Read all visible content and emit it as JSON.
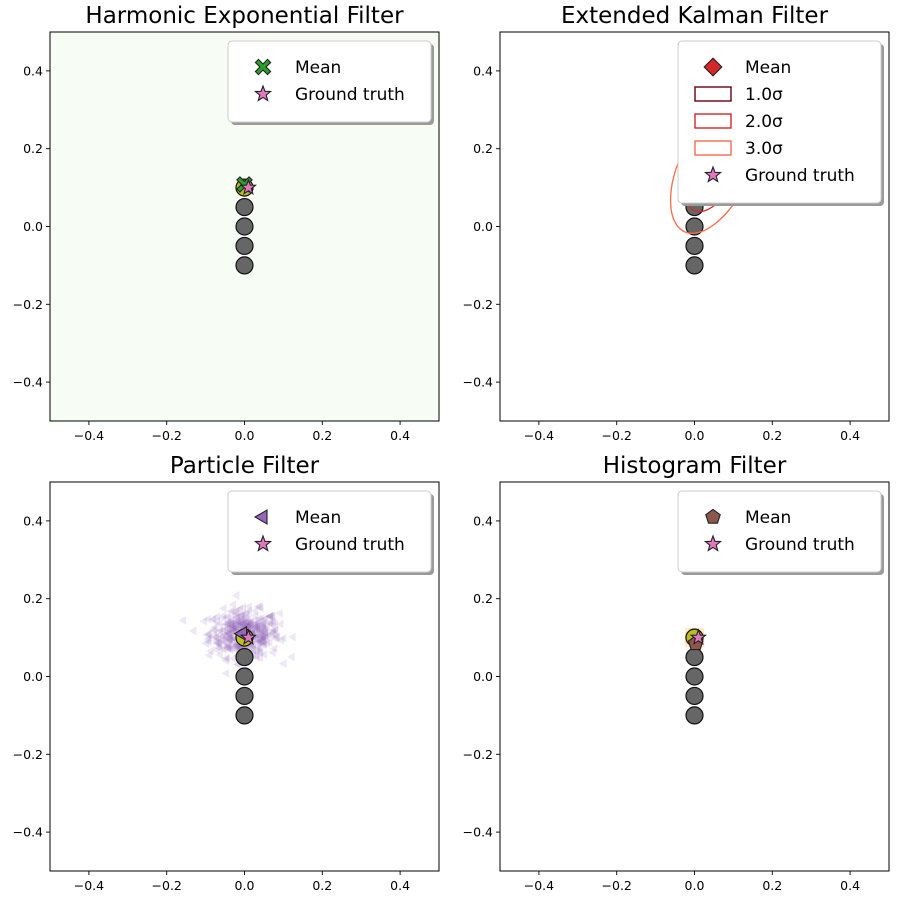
{
  "chart_data": [
    {
      "type": "scatter",
      "title": "Harmonic Exponential Filter",
      "xlim": [
        -0.5,
        0.5
      ],
      "ylim": [
        -0.5,
        0.5
      ],
      "xticks": [
        -0.4,
        -0.2,
        0.0,
        0.2,
        0.4
      ],
      "yticks": [
        -0.4,
        -0.2,
        0.0,
        0.2,
        0.4
      ],
      "tick_labels": [
        "−0.4",
        "−0.2",
        "0.0",
        "0.2",
        "0.4"
      ],
      "background": "#f7fcf5",
      "landmarks": {
        "x": [
          0.0,
          0.0,
          0.0,
          0.0,
          0.0
        ],
        "y": [
          0.1,
          0.05,
          0.0,
          -0.05,
          -0.1
        ],
        "colors": [
          "#bcbd22",
          "#666666",
          "#666666",
          "#666666",
          "#666666"
        ]
      },
      "mean": {
        "x": 0.0,
        "y": 0.108,
        "marker": "X",
        "color": "#2ca02c"
      },
      "ground_truth": {
        "x": 0.01,
        "y": 0.1,
        "marker": "star",
        "color": "#e377c2"
      },
      "legend_position": "top-right",
      "legend": [
        {
          "label": "Mean",
          "marker": "X",
          "color": "#2ca02c"
        },
        {
          "label": "Ground truth",
          "marker": "star",
          "color": "#e377c2"
        }
      ]
    },
    {
      "type": "scatter",
      "title": "Extended Kalman Filter",
      "xlim": [
        -0.5,
        0.5
      ],
      "ylim": [
        -0.5,
        0.5
      ],
      "xticks": [
        -0.4,
        -0.2,
        0.0,
        0.2,
        0.4
      ],
      "yticks": [
        -0.4,
        -0.2,
        0.0,
        0.2,
        0.4
      ],
      "tick_labels": [
        "−0.4",
        "−0.2",
        "0.0",
        "0.2",
        "0.4"
      ],
      "landmarks": {
        "x": [
          0.0,
          0.0,
          0.0,
          0.0,
          0.0
        ],
        "y": [
          0.1,
          0.05,
          0.0,
          -0.05,
          -0.1
        ],
        "colors": [
          "#bcbd22",
          "#666666",
          "#666666",
          "#666666",
          "#666666"
        ]
      },
      "mean": {
        "x": 0.05,
        "y": 0.15,
        "marker": "diamond",
        "color": "#d62728"
      },
      "ground_truth": {
        "x": 0.05,
        "y": 0.13,
        "marker": "star",
        "color": "#e377c2"
      },
      "covariance_ellipses": [
        {
          "sigma": 1.0,
          "rx": 0.03,
          "ry": 0.06,
          "color": "#67000d"
        },
        {
          "sigma": 2.0,
          "rx": 0.06,
          "ry": 0.12,
          "color": "#d62728"
        },
        {
          "sigma": 3.0,
          "rx": 0.09,
          "ry": 0.18,
          "color": "#fb6a4a"
        }
      ],
      "legend_position": "top-right",
      "legend": [
        {
          "label": "Mean",
          "marker": "diamond",
          "color": "#d62728"
        },
        {
          "label": "1.0σ",
          "marker": "rect",
          "color": "#67000d"
        },
        {
          "label": "2.0σ",
          "marker": "rect",
          "color": "#d62728"
        },
        {
          "label": "3.0σ",
          "marker": "rect",
          "color": "#fb6a4a"
        },
        {
          "label": "Ground truth",
          "marker": "star",
          "color": "#e377c2"
        }
      ]
    },
    {
      "type": "scatter",
      "title": "Particle Filter",
      "xlim": [
        -0.5,
        0.5
      ],
      "ylim": [
        -0.5,
        0.5
      ],
      "xticks": [
        -0.4,
        -0.2,
        0.0,
        0.2,
        0.4
      ],
      "yticks": [
        -0.4,
        -0.2,
        0.0,
        0.2,
        0.4
      ],
      "tick_labels": [
        "−0.4",
        "−0.2",
        "0.0",
        "0.2",
        "0.4"
      ],
      "landmarks": {
        "x": [
          0.0,
          0.0,
          0.0,
          0.0,
          0.0
        ],
        "y": [
          0.1,
          0.05,
          0.0,
          -0.05,
          -0.1
        ],
        "colors": [
          "#bcbd22",
          "#666666",
          "#666666",
          "#666666",
          "#666666"
        ]
      },
      "particles": {
        "center": [
          0.0,
          0.11
        ],
        "spread": [
          0.045,
          0.03
        ],
        "count": 400,
        "color": "#9467bd"
      },
      "mean": {
        "x": -0.005,
        "y": 0.11,
        "marker": "triangle-left",
        "color": "#9467bd"
      },
      "ground_truth": {
        "x": 0.01,
        "y": 0.1,
        "marker": "star",
        "color": "#e377c2"
      },
      "legend_position": "top-right",
      "legend": [
        {
          "label": "Mean",
          "marker": "triangle-left",
          "color": "#9467bd"
        },
        {
          "label": "Ground truth",
          "marker": "star",
          "color": "#e377c2"
        }
      ]
    },
    {
      "type": "heatmap",
      "title": "Histogram Filter",
      "xlim": [
        -0.5,
        0.5
      ],
      "ylim": [
        -0.5,
        0.5
      ],
      "xticks": [
        -0.4,
        -0.2,
        0.0,
        0.2,
        0.4
      ],
      "yticks": [
        -0.4,
        -0.2,
        0.0,
        0.2,
        0.4
      ],
      "tick_labels": [
        "−0.4",
        "−0.2",
        "0.0",
        "0.2",
        "0.4"
      ],
      "landmarks": {
        "x": [
          0.0,
          0.0,
          0.0,
          0.0,
          0.0
        ],
        "y": [
          0.1,
          0.05,
          0.0,
          -0.05,
          -0.1
        ],
        "colors": [
          "#bcbd22",
          "#666666",
          "#666666",
          "#666666",
          "#666666"
        ]
      },
      "histogram": {
        "cell": 0.01,
        "cells": [
          {
            "x": -0.02,
            "y": 0.12,
            "v": 0.15
          },
          {
            "x": -0.01,
            "y": 0.12,
            "v": 0.25
          },
          {
            "x": 0.0,
            "y": 0.12,
            "v": 0.3
          },
          {
            "x": 0.01,
            "y": 0.12,
            "v": 0.25
          },
          {
            "x": 0.02,
            "y": 0.12,
            "v": 0.15
          },
          {
            "x": -0.02,
            "y": 0.11,
            "v": 0.25
          },
          {
            "x": -0.01,
            "y": 0.11,
            "v": 0.5
          },
          {
            "x": 0.0,
            "y": 0.11,
            "v": 0.6
          },
          {
            "x": 0.01,
            "y": 0.11,
            "v": 0.5
          },
          {
            "x": 0.02,
            "y": 0.11,
            "v": 0.25
          },
          {
            "x": -0.02,
            "y": 0.1,
            "v": 0.3
          },
          {
            "x": -0.01,
            "y": 0.1,
            "v": 0.6
          },
          {
            "x": 0.0,
            "y": 0.1,
            "v": 0.9
          },
          {
            "x": 0.01,
            "y": 0.1,
            "v": 0.7
          },
          {
            "x": 0.02,
            "y": 0.1,
            "v": 0.3
          },
          {
            "x": -0.02,
            "y": 0.09,
            "v": 0.25
          },
          {
            "x": -0.01,
            "y": 0.09,
            "v": 0.5
          },
          {
            "x": 0.0,
            "y": 0.09,
            "v": 0.7
          },
          {
            "x": 0.01,
            "y": 0.09,
            "v": 0.6
          },
          {
            "x": 0.02,
            "y": 0.09,
            "v": 0.25
          },
          {
            "x": -0.02,
            "y": 0.08,
            "v": 0.15
          },
          {
            "x": -0.01,
            "y": 0.08,
            "v": 0.25
          },
          {
            "x": 0.0,
            "y": 0.08,
            "v": 0.3
          },
          {
            "x": 0.01,
            "y": 0.08,
            "v": 0.25
          },
          {
            "x": 0.02,
            "y": 0.08,
            "v": 0.15
          }
        ]
      },
      "mean": {
        "x": 0.003,
        "y": 0.085,
        "marker": "pentagon",
        "color": "#8c564b"
      },
      "ground_truth": {
        "x": 0.01,
        "y": 0.1,
        "marker": "star",
        "color": "#e377c2"
      },
      "legend_position": "top-right",
      "legend": [
        {
          "label": "Mean",
          "marker": "pentagon",
          "color": "#8c564b"
        },
        {
          "label": "Ground truth",
          "marker": "star",
          "color": "#e377c2"
        }
      ]
    }
  ]
}
